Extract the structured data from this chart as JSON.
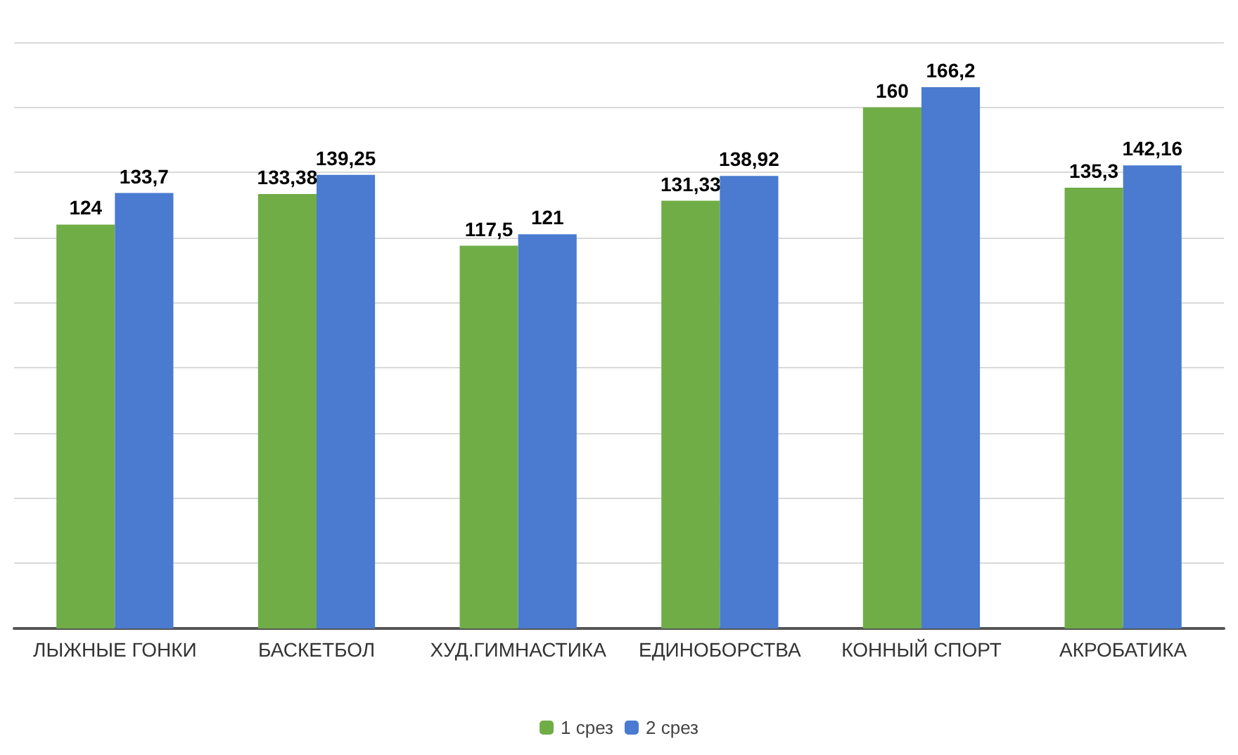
{
  "chart_data": {
    "type": "bar",
    "categories": [
      "ЛЫЖНЫЕ ГОНКИ",
      "БАСКЕТБОЛ",
      "ХУД.ГИМНАСТИКА",
      "ЕДИНОБОРСТВА",
      "КОННЫЙ СПОРТ",
      "АКРОБАТИКА"
    ],
    "series": [
      {
        "name": "1 срез",
        "color": "#70ad47",
        "values": [
          124,
          133.38,
          117.5,
          131.33,
          160,
          135.3
        ],
        "value_labels": [
          "124",
          "133,38",
          "117,5",
          "131,33",
          "160",
          "135,3"
        ]
      },
      {
        "name": "2 срез",
        "color": "#4a7bd0",
        "values": [
          133.7,
          139.25,
          121,
          138.92,
          166.2,
          142.16
        ],
        "value_labels": [
          "133,7",
          "139,25",
          "121",
          "138,92",
          "166,2",
          "142,16"
        ]
      }
    ],
    "ylim": [
      0,
      180
    ],
    "yticks": [
      {
        "value": 0,
        "label": null
      },
      {
        "value": 20,
        "label": null
      },
      {
        "value": 40,
        "label": null
      },
      {
        "value": 60,
        "label": null
      },
      {
        "value": 80,
        "label": null
      },
      {
        "value": 100,
        "label": null
      },
      {
        "value": 120,
        "label": null
      },
      {
        "value": 140,
        "label": null
      },
      {
        "value": 160,
        "label": null
      },
      {
        "value": 180,
        "label": null
      }
    ],
    "tick_labels": "x",
    "grid": "y",
    "legend": "bottom"
  }
}
